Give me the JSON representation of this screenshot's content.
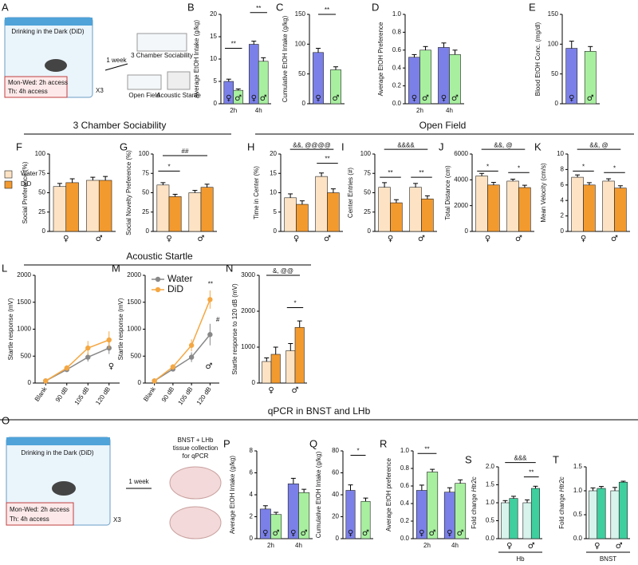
{
  "diagrams": [
    {
      "panel": "A",
      "title": "Drinking in the Dark (DiD)",
      "schedule": [
        "Mon-Wed: 2h access",
        "Th: 4h access"
      ],
      "repeat": "X3",
      "interval": "1 week",
      "tests": [
        "3 Chamber Sociability",
        "Open Field",
        "Acoustic Startle"
      ]
    },
    {
      "panel": "O",
      "title": "Drinking in the Dark (DiD)",
      "schedule": [
        "Mon-Wed: 2h access",
        "Th: 4h access"
      ],
      "repeat": "X3",
      "interval": "1 week",
      "tests": [
        "BNST + LHb",
        "tissue collection",
        "for qPCR"
      ]
    }
  ],
  "sections": [
    "3 Chamber Sociability",
    "Open Field",
    "Acoustic Startle",
    "qPCR in BNST and LHb"
  ],
  "chart_data": [
    {
      "type": "bar",
      "panel": "B",
      "ylabel": "Average EtOH Intake (g/kg)",
      "categories": [
        "2h",
        "4h"
      ],
      "ylim": [
        0,
        20
      ],
      "yticks": [
        0,
        5,
        10,
        15,
        20
      ],
      "series": [
        {
          "name": "♀",
          "color": "#7b80e8",
          "values": [
            5.0,
            13.3
          ],
          "errors": [
            0.5,
            0.7
          ]
        },
        {
          "name": "♂",
          "color": "#a8f0a0",
          "values": [
            3.0,
            9.5
          ],
          "errors": [
            0.3,
            0.8
          ]
        }
      ],
      "annotations": [
        "**",
        "**"
      ]
    },
    {
      "type": "bar",
      "panel": "C",
      "ylabel": "Cumulative EtOH Intake (g/kg)",
      "categories": [
        "♀",
        "♂"
      ],
      "ylim": [
        0,
        150
      ],
      "yticks": [
        0,
        50,
        100,
        150
      ],
      "series": [
        {
          "colors": [
            "#7b80e8",
            "#a8f0a0"
          ],
          "values": [
            86,
            57
          ],
          "errors": [
            7,
            5
          ]
        }
      ],
      "annotations": [
        "**"
      ]
    },
    {
      "type": "bar",
      "panel": "D",
      "ylabel": "Average EtOH Preference",
      "categories": [
        "2h",
        "4h"
      ],
      "ylim": [
        0,
        1
      ],
      "yticks": [
        {
          "value": 0,
          "label": "0.0"
        },
        0.2,
        0.4,
        0.6,
        0.8,
        {
          "value": 1,
          "label": "1.0"
        }
      ],
      "series": [
        {
          "name": "♀",
          "color": "#7b80e8",
          "values": [
            0.52,
            0.63
          ],
          "errors": [
            0.03,
            0.05
          ]
        },
        {
          "name": "♂",
          "color": "#a8f0a0",
          "values": [
            0.6,
            0.55
          ],
          "errors": [
            0.04,
            0.05
          ]
        }
      ]
    },
    {
      "type": "bar",
      "panel": "E",
      "ylabel": "Blood EtOH Conc. (mg/dl)",
      "categories": [
        "♀",
        "♂"
      ],
      "ylim": [
        0,
        150
      ],
      "yticks": [
        0,
        50,
        100,
        150
      ],
      "series": [
        {
          "colors": [
            "#7b80e8",
            "#a8f0a0"
          ],
          "values": [
            93,
            88
          ],
          "errors": [
            12,
            8
          ]
        }
      ]
    },
    {
      "type": "bar",
      "panel": "F",
      "ylabel": "Social Preference (%)",
      "categories": [
        "♀",
        "♂"
      ],
      "ylim": [
        0,
        100
      ],
      "yticks": [
        0,
        25,
        50,
        75,
        100
      ],
      "legend": true,
      "series": [
        {
          "name": "Water",
          "color": "#fde3c4",
          "values": [
            58,
            66
          ],
          "errors": [
            4,
            4
          ]
        },
        {
          "name": "DiD",
          "color": "#f39a2f",
          "values": [
            63,
            66
          ],
          "errors": [
            5,
            5
          ]
        }
      ]
    },
    {
      "type": "bar",
      "panel": "G",
      "ylabel": "Social Novelty Preference (%)",
      "categories": [
        "♀",
        "♂"
      ],
      "ylim": [
        0,
        100
      ],
      "yticks": [
        0,
        25,
        50,
        75,
        100
      ],
      "series": [
        {
          "color": "#fde3c4",
          "values": [
            60,
            50
          ],
          "errors": [
            3,
            3
          ]
        },
        {
          "color": "#f39a2f",
          "values": [
            45,
            57
          ],
          "errors": [
            3,
            4
          ]
        }
      ],
      "annotations": [
        "*",
        "##"
      ]
    },
    {
      "type": "bar",
      "panel": "H",
      "ylabel": "Time in Center (%)",
      "categories": [
        "♀",
        "♂"
      ],
      "ylim": [
        0,
        20
      ],
      "yticks": [
        0,
        5,
        10,
        15,
        20
      ],
      "series": [
        {
          "color": "#fde3c4",
          "values": [
            8.7,
            14.2
          ],
          "errors": [
            1.0,
            0.9
          ]
        },
        {
          "color": "#f39a2f",
          "values": [
            7.0,
            10.0
          ],
          "errors": [
            0.9,
            1.0
          ]
        }
      ],
      "annotations": [
        "&&, @@@@",
        "**"
      ]
    },
    {
      "type": "bar",
      "panel": "I",
      "ylabel": "Center Entries (#)",
      "categories": [
        "♀",
        "♂"
      ],
      "ylim": [
        0,
        100
      ],
      "yticks": [
        0,
        25,
        50,
        75,
        100
      ],
      "series": [
        {
          "color": "#fde3c4",
          "values": [
            57,
            57
          ],
          "errors": [
            6,
            5
          ]
        },
        {
          "color": "#f39a2f",
          "values": [
            37,
            42
          ],
          "errors": [
            4,
            4
          ]
        }
      ],
      "annotations": [
        "&&&&",
        "**",
        "**"
      ]
    },
    {
      "type": "bar",
      "panel": "J",
      "ylabel": "Total Distance (cm)",
      "categories": [
        "♀",
        "♂"
      ],
      "ylim": [
        0,
        6000
      ],
      "yticks": [
        0,
        2000,
        4000,
        6000
      ],
      "series": [
        {
          "color": "#fde3c4",
          "values": [
            4300,
            3900
          ],
          "errors": [
            200,
            150
          ]
        },
        {
          "color": "#f39a2f",
          "values": [
            3600,
            3400
          ],
          "errors": [
            200,
            180
          ]
        }
      ],
      "annotations": [
        "&&, @",
        "*",
        "*"
      ]
    },
    {
      "type": "bar",
      "panel": "K",
      "ylabel": "Mean Velocity (cm/s)",
      "categories": [
        "♀",
        "♂"
      ],
      "ylim": [
        0,
        10
      ],
      "yticks": [
        0,
        2,
        4,
        6,
        8,
        10
      ],
      "series": [
        {
          "color": "#fde3c4",
          "values": [
            7.0,
            6.5
          ],
          "errors": [
            0.3,
            0.3
          ]
        },
        {
          "color": "#f39a2f",
          "values": [
            6.0,
            5.6
          ],
          "errors": [
            0.3,
            0.3
          ]
        }
      ],
      "annotations": [
        "&&, @",
        "*",
        "*"
      ]
    },
    {
      "type": "line",
      "panel": "L",
      "ylabel": "Startle response (mV)",
      "categories": [
        "Blank",
        "90 dB",
        "105 dB",
        "120 dB"
      ],
      "ylim": [
        0,
        2000
      ],
      "yticks": [
        0,
        500,
        1000,
        1500,
        2000
      ],
      "series": [
        {
          "name": "Water",
          "color": "#888888",
          "values": [
            40,
            250,
            480,
            650
          ],
          "errors": [
            10,
            40,
            80,
            110
          ]
        },
        {
          "name": "DiD",
          "color": "#f5a742",
          "values": [
            40,
            280,
            650,
            800
          ],
          "errors": [
            10,
            50,
            130,
            160
          ]
        }
      ],
      "annotations": [
        "♀"
      ]
    },
    {
      "type": "line",
      "panel": "M",
      "ylabel": "Startle response (mV)",
      "categories": [
        "Blank",
        "90 dB",
        "105 dB",
        "120 dB"
      ],
      "ylim": [
        0,
        2000
      ],
      "yticks": [
        0,
        500,
        1000,
        1500,
        2000
      ],
      "legend": true,
      "series": [
        {
          "name": "Water",
          "color": "#888888",
          "values": [
            40,
            260,
            480,
            900
          ],
          "errors": [
            10,
            40,
            90,
            200
          ]
        },
        {
          "name": "DiD",
          "color": "#f5a742",
          "values": [
            40,
            300,
            700,
            1550
          ],
          "errors": [
            10,
            50,
            110,
            170
          ]
        }
      ],
      "annotations": [
        "**",
        "#",
        "♂"
      ]
    },
    {
      "type": "bar",
      "panel": "N",
      "ylabel": "Startle response to 120 dB (mV)",
      "categories": [
        "♀",
        "♂"
      ],
      "ylim": [
        0,
        3000
      ],
      "yticks": [
        0,
        1000,
        2000,
        3000
      ],
      "series": [
        {
          "color": "#fde3c4",
          "values": [
            600,
            900
          ],
          "errors": [
            100,
            200
          ]
        },
        {
          "color": "#f39a2f",
          "values": [
            800,
            1550
          ],
          "errors": [
            200,
            180
          ]
        }
      ],
      "annotations": [
        "&, @@",
        "*"
      ]
    },
    {
      "type": "bar",
      "panel": "P",
      "ylabel": "Average EtOH Intake (g/kg)",
      "categories": [
        "2h",
        "4h"
      ],
      "ylim": [
        0,
        8
      ],
      "yticks": [
        0,
        2,
        4,
        6,
        8
      ],
      "series": [
        {
          "name": "♀",
          "color": "#7b80e8",
          "values": [
            2.7,
            5.0
          ],
          "errors": [
            0.3,
            0.5
          ]
        },
        {
          "name": "♂",
          "color": "#a8f0a0",
          "values": [
            2.2,
            4.2
          ],
          "errors": [
            0.2,
            0.3
          ]
        }
      ]
    },
    {
      "type": "bar",
      "panel": "Q",
      "ylabel": "Cumulative EtOH Intake (g/kg)",
      "categories": [
        "♀",
        "♂"
      ],
      "ylim": [
        0,
        80
      ],
      "yticks": [
        0,
        20,
        40,
        60,
        80
      ],
      "series": [
        {
          "colors": [
            "#7b80e8",
            "#a8f0a0"
          ],
          "values": [
            44,
            34
          ],
          "errors": [
            5,
            3
          ]
        }
      ],
      "annotations": [
        "*"
      ]
    },
    {
      "type": "bar",
      "panel": "R",
      "ylabel": "Average EtOH preference",
      "categories": [
        "2h",
        "4h"
      ],
      "ylim": [
        0,
        1
      ],
      "yticks": [
        {
          "value": 0,
          "label": "0.0"
        },
        0.2,
        0.4,
        0.6,
        0.8,
        {
          "value": 1,
          "label": "1.0"
        }
      ],
      "series": [
        {
          "name": "♀",
          "color": "#7b80e8",
          "values": [
            0.55,
            0.53
          ],
          "errors": [
            0.06,
            0.05
          ]
        },
        {
          "name": "♂",
          "color": "#a8f0a0",
          "values": [
            0.76,
            0.63
          ],
          "errors": [
            0.03,
            0.04
          ]
        }
      ],
      "annotations": [
        "**"
      ]
    },
    {
      "type": "bar",
      "panel": "S",
      "ylabel": "Fold change ",
      "ylabel_em": "Htr2c",
      "xlabel": "Hb",
      "categories": [
        "♀",
        "♂"
      ],
      "ylim": [
        0,
        2
      ],
      "yticks": [
        {
          "value": 0,
          "label": "0.0"
        },
        0.5,
        {
          "value": 1,
          "label": "1.0"
        },
        1.5,
        {
          "value": 2,
          "label": "2.0"
        }
      ],
      "series": [
        {
          "color": "#d7f3ec",
          "values": [
            1.0,
            1.0
          ],
          "errors": [
            0.06,
            0.08
          ]
        },
        {
          "color": "#3fcf9f",
          "values": [
            1.12,
            1.4
          ],
          "errors": [
            0.06,
            0.06
          ]
        }
      ],
      "annotations": [
        "&&&",
        "**"
      ]
    },
    {
      "type": "bar",
      "panel": "T",
      "ylabel": "Fold change ",
      "ylabel_em": "Htr2c",
      "xlabel": "BNST",
      "categories": [
        "♀",
        "♂"
      ],
      "ylim": [
        0,
        1.5
      ],
      "yticks": [
        {
          "value": 0,
          "label": "0.0"
        },
        0.5,
        {
          "value": 1,
          "label": "1.0"
        },
        1.5
      ],
      "series": [
        {
          "color": "#d7f3ec",
          "values": [
            1.0,
            1.0
          ],
          "errors": [
            0.06,
            0.07
          ]
        },
        {
          "color": "#3fcf9f",
          "values": [
            1.05,
            1.18
          ],
          "errors": [
            0.04,
            0.02
          ]
        }
      ]
    }
  ]
}
